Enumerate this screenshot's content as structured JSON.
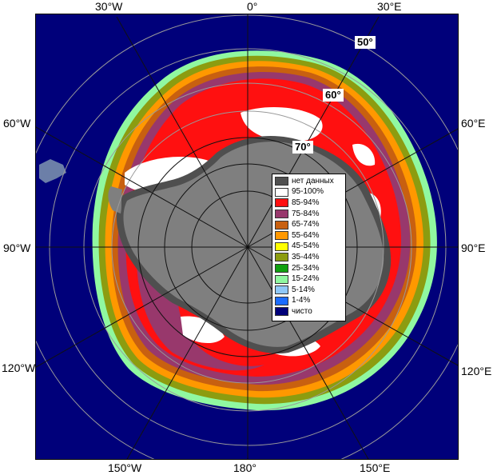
{
  "map": {
    "longitude_labels": {
      "top": [
        "30°W",
        "0°",
        "30°E"
      ],
      "bottom": [
        "150°W",
        "180°",
        "150°E"
      ],
      "left": [
        "60°W",
        "90°W",
        "120°W"
      ],
      "right": [
        "60°E",
        "90°E",
        "120°E"
      ]
    },
    "latitude_labels": [
      "50°",
      "60°",
      "70°"
    ],
    "colors": {
      "ocean": "#00007a",
      "land": "#7f7f7f",
      "land_dark": "#4f4f4f",
      "grid": "#aaaaaa"
    }
  },
  "legend": {
    "items": [
      {
        "label": "нет данных",
        "color": "#505050"
      },
      {
        "label": "95-100%",
        "color": "#ffffff"
      },
      {
        "label": "85-94%",
        "color": "#ff1010"
      },
      {
        "label": "75-84%",
        "color": "#98386c"
      },
      {
        "label": "65-74%",
        "color": "#c86010"
      },
      {
        "label": "55-64%",
        "color": "#ff9800"
      },
      {
        "label": "45-54%",
        "color": "#ffff00"
      },
      {
        "label": "35-44%",
        "color": "#8c9c10"
      },
      {
        "label": "25-34%",
        "color": "#10a010"
      },
      {
        "label": "15-24%",
        "color": "#90f8a0"
      },
      {
        "label": "5-14%",
        "color": "#90c8f8"
      },
      {
        "label": "1-4%",
        "color": "#1c6cff"
      },
      {
        "label": "чисто",
        "color": "#00007a"
      }
    ]
  }
}
